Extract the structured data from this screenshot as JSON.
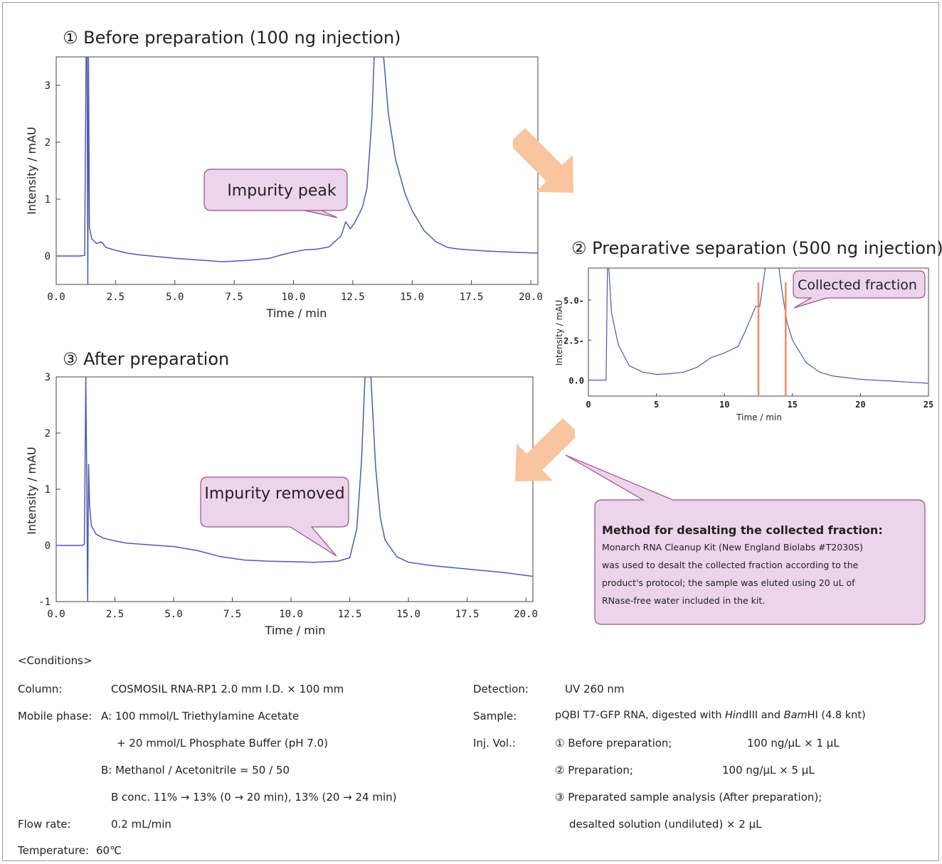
{
  "colors": {
    "trace": "#4c5bb0",
    "fraction_marker": "#f08a5d",
    "callout_fill": "#ecd4ea",
    "callout_stroke": "#9b4d8f",
    "arrow": "#f9c4a0"
  },
  "callouts": {
    "impurity_peak": "Impurity peak",
    "impurity_removed": "Impurity removed",
    "collected_fraction": "Collected fraction"
  },
  "method": {
    "title": "Method for desalting the collected fraction:",
    "lines": [
      "Monarch RNA Cleanup Kit (New England Biolabs #T2030S)",
      "was used to desalt the collected fraction according to the",
      "product's protocol; the sample was eluted using 20 uL of",
      "RNase-free water included in the kit."
    ]
  },
  "conditions": {
    "header": "<Conditions>",
    "column_label": "Column:",
    "column_value": "COSMOSIL RNA-RP1  2.0 mm I.D. × 100 mm",
    "mobile_label": "Mobile phase:",
    "mobile_a": "A: 100 mmol/L Triethylamine Acetate",
    "mobile_a2": "+ 20 mmol/L Phosphate Buffer (pH 7.0)",
    "mobile_b": "B: Methanol / Acetonitrile = 50 / 50",
    "mobile_b2": "B conc. 11% → 13% (0 → 20 min), 13% (20 → 24 min)",
    "flow_label": "Flow rate:",
    "flow_value": "0.2 mL/min",
    "temp_label": "Temperature:",
    "temp_value": "60℃",
    "detection_label": "Detection:",
    "detection_value": "UV 260 nm",
    "sample_label": "Sample:",
    "sample_pre": "pQBI T7-GFP RNA, digested with ",
    "sample_enz1": "Hin",
    "sample_enz1b": "dIII and ",
    "sample_enz2": "Bam",
    "sample_enz2b": "HI (4.8 knt)",
    "inj_label": "Inj. Vol.:",
    "inj1_a": "① Before preparation;",
    "inj1_b": "100 ng/μL × 1 μL",
    "inj2_a": "② Preparation;",
    "inj2_b": "100 ng/μL × 5 μL",
    "inj3_a": "③ Preparated sample analysis (After preparation);",
    "inj3_b": "desalted solution (undiluted) × 2 μL"
  },
  "chart_data": [
    {
      "type": "line",
      "title": "① Before preparation (100 ng injection)",
      "xlabel": "Time / min",
      "ylabel": "Intensity / mAU",
      "xlim": [
        0,
        20.3
      ],
      "ylim": [
        -0.5,
        3.5
      ],
      "xticks": [
        0.0,
        2.5,
        5.0,
        7.5,
        10.0,
        12.5,
        15.0,
        17.5,
        20.0
      ],
      "xtick_labels": [
        "0.0",
        "2.5",
        "5.0",
        "7.5",
        "10.0",
        "12.5",
        "15.0",
        "17.5",
        "20.0"
      ],
      "yticks": [
        0,
        1,
        2,
        3
      ],
      "ytick_labels": [
        "0",
        "1",
        "2",
        "3"
      ],
      "series": [
        {
          "x": [
            0,
            1.0,
            1.2,
            1.26,
            1.3,
            1.33,
            1.36,
            1.4,
            1.5,
            1.7,
            1.9,
            2.1,
            2.5,
            3,
            3.5,
            4,
            5,
            6,
            7,
            8,
            9,
            9.5,
            10,
            10.5,
            11,
            11.5,
            12,
            12.2,
            12.4,
            12.6,
            12.9,
            13.1,
            13.3,
            13.4,
            13.5,
            13.8,
            14,
            14.3,
            14.7,
            15,
            15.5,
            16,
            16.5,
            17,
            18,
            19,
            20.3
          ],
          "y": [
            0,
            0,
            0.01,
            3.5,
            3.5,
            -0.5,
            3.5,
            0.5,
            0.3,
            0.22,
            0.25,
            0.15,
            0.1,
            0.05,
            0.02,
            0,
            -0.04,
            -0.07,
            -0.1,
            -0.08,
            -0.04,
            0.02,
            0.07,
            0.11,
            0.12,
            0.16,
            0.35,
            0.6,
            0.48,
            0.6,
            0.85,
            1.2,
            2.4,
            3.5,
            3.5,
            3.5,
            2.5,
            1.7,
            1.1,
            0.8,
            0.45,
            0.25,
            0.15,
            0.12,
            0.09,
            0.07,
            0.05
          ]
        }
      ]
    },
    {
      "type": "line",
      "title": "② Preparative separation (500 ng injection)",
      "xlabel": "Time / min",
      "ylabel": "Intensity / mAU",
      "xlim": [
        0,
        25
      ],
      "ylim": [
        -1,
        7
      ],
      "xticks": [
        0,
        5,
        10,
        15,
        20,
        25
      ],
      "xtick_labels": [
        "0",
        "5",
        "10",
        "15",
        "20",
        "25"
      ],
      "yticks": [
        0.0,
        2.5,
        5.0
      ],
      "ytick_labels": [
        "0.0",
        "2.5-",
        "5.0-"
      ],
      "fraction_markers": [
        12.5,
        14.5
      ],
      "series": [
        {
          "x": [
            0,
            1.3,
            1.4,
            1.5,
            1.7,
            2.2,
            3,
            4,
            5,
            6,
            7,
            8,
            9,
            10,
            11,
            11.5,
            12,
            12.3,
            12.6,
            13,
            13.5,
            14,
            14.3,
            14.6,
            15,
            16,
            17,
            18,
            20,
            22,
            25
          ],
          "y": [
            0,
            0,
            7,
            7,
            4.2,
            2.2,
            0.9,
            0.5,
            0.35,
            0.4,
            0.5,
            0.8,
            1.4,
            1.7,
            2.1,
            3.0,
            4.0,
            4.6,
            4.6,
            7,
            7,
            7,
            5.2,
            3.6,
            2.5,
            1.1,
            0.5,
            0.25,
            0.05,
            -0.05,
            -0.2
          ]
        }
      ]
    },
    {
      "type": "line",
      "title": "③ After preparation",
      "xlabel": "Time / min",
      "ylabel": "Intensity / mAU",
      "xlim": [
        0,
        20.3
      ],
      "ylim": [
        -1,
        3
      ],
      "xticks": [
        0.0,
        2.5,
        5.0,
        7.5,
        10.0,
        12.5,
        15.0,
        17.5,
        20.0
      ],
      "xtick_labels": [
        "0.0",
        "2.5",
        "5.0",
        "7.5",
        "10.0",
        "12.5",
        "15.0",
        "17.5",
        "20.0"
      ],
      "yticks": [
        -1,
        0,
        1,
        2,
        3
      ],
      "ytick_labels": [
        "-1",
        "0",
        "1",
        "2",
        "3"
      ],
      "series": [
        {
          "x": [
            0,
            1.1,
            1.2,
            1.26,
            1.3,
            1.34,
            1.38,
            1.42,
            1.5,
            1.7,
            2,
            2.5,
            3,
            4,
            5,
            6,
            7,
            8,
            9,
            10,
            11,
            12,
            12.5,
            12.8,
            13,
            13.15,
            13.4,
            13.6,
            13.8,
            14,
            14.5,
            15,
            16,
            17,
            18,
            19,
            20.3
          ],
          "y": [
            0,
            0,
            0.02,
            3,
            1.2,
            -1,
            1.45,
            0.7,
            0.35,
            0.2,
            0.13,
            0.08,
            0.04,
            0.01,
            -0.02,
            -0.09,
            -0.2,
            -0.26,
            -0.28,
            -0.29,
            -0.3,
            -0.28,
            -0.22,
            0.3,
            1.5,
            3,
            3,
            1.4,
            0.5,
            0.1,
            -0.2,
            -0.3,
            -0.36,
            -0.4,
            -0.44,
            -0.48,
            -0.55
          ]
        }
      ]
    }
  ]
}
